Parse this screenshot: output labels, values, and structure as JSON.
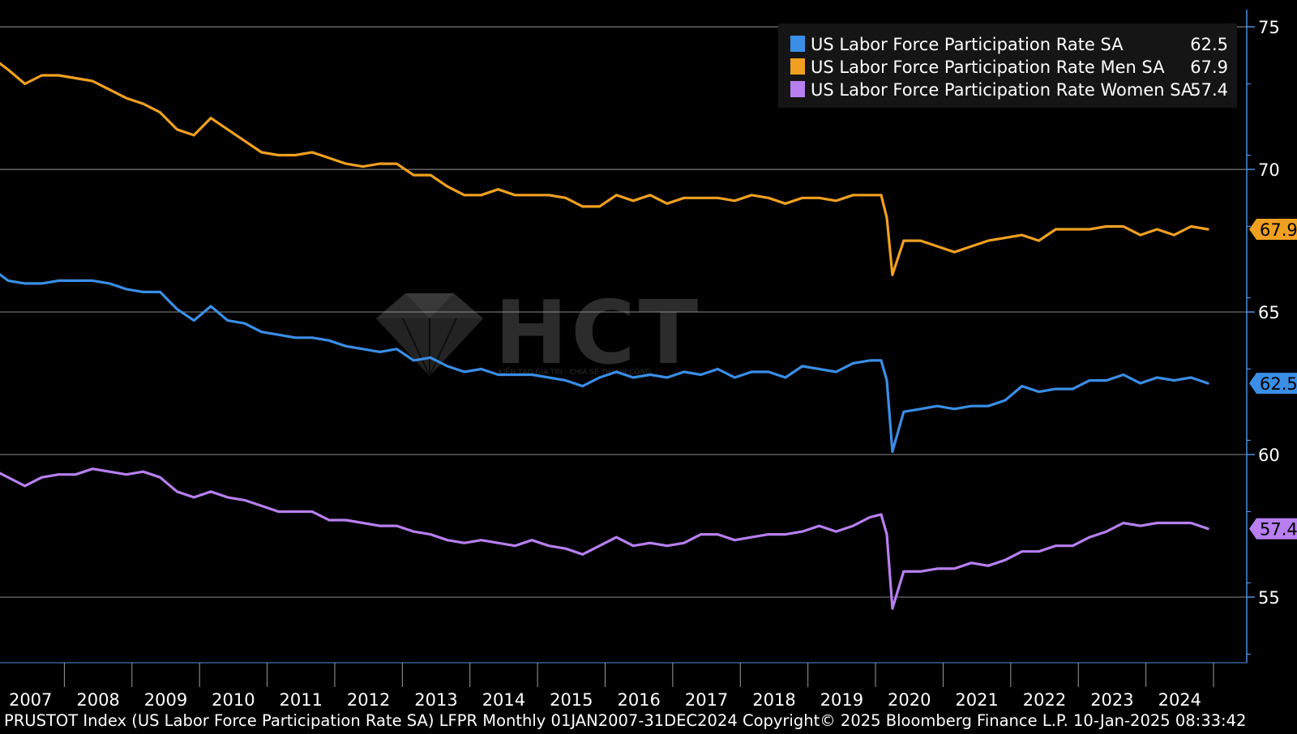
{
  "footer": {
    "caption": "PRUSTOT Index (US Labor Force Participation Rate SA) LFPR  Monthly 01JAN2007-31DEC2024 Copyright© 2025 Bloomberg Finance L.P. 10-Jan-2025 08:33:42"
  },
  "watermark": {
    "text": "HCT",
    "tagline": "KIẾN TẠO GIÁ TRỊ - CHIA SẺ THÀNH CÔNG"
  },
  "colors": {
    "background": "#000000",
    "grid": "#7a7a7a",
    "axis": "#4a90e2",
    "tick_text": "#ffffff",
    "legend_bg": "#151515"
  },
  "chart_data": {
    "type": "line",
    "title": "",
    "xlabel": "",
    "ylabel": "",
    "x_range": [
      "2007-01",
      "2024-12"
    ],
    "x_tick_labels": [
      "2007",
      "2008",
      "2009",
      "2010",
      "2011",
      "2012",
      "2013",
      "2014",
      "2015",
      "2016",
      "2017",
      "2018",
      "2019",
      "2020",
      "2021",
      "2022",
      "2023",
      "2024"
    ],
    "ylim": [
      52.7,
      75.6
    ],
    "y_ticks": [
      55,
      60,
      65,
      70,
      75
    ],
    "grid": true,
    "legend_position": "top-right",
    "y_axis_position": "right",
    "series": [
      {
        "name": "US Labor Force Participation Rate SA",
        "legend_value": "62.5",
        "last_label": "62.5",
        "color": "#3a8ee6",
        "points": [
          [
            "2007-01",
            66.4
          ],
          [
            "2007-03",
            66.1
          ],
          [
            "2007-06",
            66.0
          ],
          [
            "2007-09",
            66.0
          ],
          [
            "2007-12",
            66.1
          ],
          [
            "2008-03",
            66.1
          ],
          [
            "2008-06",
            66.1
          ],
          [
            "2008-09",
            66.0
          ],
          [
            "2008-12",
            65.8
          ],
          [
            "2009-03",
            65.7
          ],
          [
            "2009-06",
            65.7
          ],
          [
            "2009-09",
            65.1
          ],
          [
            "2009-12",
            64.7
          ],
          [
            "2010-03",
            65.2
          ],
          [
            "2010-06",
            64.7
          ],
          [
            "2010-09",
            64.6
          ],
          [
            "2010-12",
            64.3
          ],
          [
            "2011-03",
            64.2
          ],
          [
            "2011-06",
            64.1
          ],
          [
            "2011-09",
            64.1
          ],
          [
            "2011-12",
            64.0
          ],
          [
            "2012-03",
            63.8
          ],
          [
            "2012-06",
            63.7
          ],
          [
            "2012-09",
            63.6
          ],
          [
            "2012-12",
            63.7
          ],
          [
            "2013-03",
            63.3
          ],
          [
            "2013-06",
            63.4
          ],
          [
            "2013-09",
            63.1
          ],
          [
            "2013-12",
            62.9
          ],
          [
            "2014-03",
            63.0
          ],
          [
            "2014-06",
            62.8
          ],
          [
            "2014-09",
            62.8
          ],
          [
            "2014-12",
            62.8
          ],
          [
            "2015-03",
            62.7
          ],
          [
            "2015-06",
            62.6
          ],
          [
            "2015-09",
            62.4
          ],
          [
            "2015-12",
            62.7
          ],
          [
            "2016-03",
            62.9
          ],
          [
            "2016-06",
            62.7
          ],
          [
            "2016-09",
            62.8
          ],
          [
            "2016-12",
            62.7
          ],
          [
            "2017-03",
            62.9
          ],
          [
            "2017-06",
            62.8
          ],
          [
            "2017-09",
            63.0
          ],
          [
            "2017-12",
            62.7
          ],
          [
            "2018-03",
            62.9
          ],
          [
            "2018-06",
            62.9
          ],
          [
            "2018-09",
            62.7
          ],
          [
            "2018-12",
            63.1
          ],
          [
            "2019-03",
            63.0
          ],
          [
            "2019-06",
            62.9
          ],
          [
            "2019-09",
            63.2
          ],
          [
            "2019-12",
            63.3
          ],
          [
            "2020-02",
            63.3
          ],
          [
            "2020-03",
            62.6
          ],
          [
            "2020-04",
            60.1
          ],
          [
            "2020-06",
            61.5
          ],
          [
            "2020-09",
            61.6
          ],
          [
            "2020-12",
            61.7
          ],
          [
            "2021-03",
            61.6
          ],
          [
            "2021-06",
            61.7
          ],
          [
            "2021-09",
            61.7
          ],
          [
            "2021-12",
            61.9
          ],
          [
            "2022-03",
            62.4
          ],
          [
            "2022-06",
            62.2
          ],
          [
            "2022-09",
            62.3
          ],
          [
            "2022-12",
            62.3
          ],
          [
            "2023-03",
            62.6
          ],
          [
            "2023-06",
            62.6
          ],
          [
            "2023-09",
            62.8
          ],
          [
            "2023-12",
            62.5
          ],
          [
            "2024-03",
            62.7
          ],
          [
            "2024-06",
            62.6
          ],
          [
            "2024-09",
            62.7
          ],
          [
            "2024-12",
            62.5
          ]
        ]
      },
      {
        "name": "US Labor Force Participation Rate Men SA",
        "legend_value": "67.9",
        "last_label": "67.9",
        "color": "#f0a020",
        "points": [
          [
            "2007-01",
            73.8
          ],
          [
            "2007-03",
            73.5
          ],
          [
            "2007-06",
            73.0
          ],
          [
            "2007-09",
            73.3
          ],
          [
            "2007-12",
            73.3
          ],
          [
            "2008-03",
            73.2
          ],
          [
            "2008-06",
            73.1
          ],
          [
            "2008-09",
            72.8
          ],
          [
            "2008-12",
            72.5
          ],
          [
            "2009-03",
            72.3
          ],
          [
            "2009-06",
            72.0
          ],
          [
            "2009-09",
            71.4
          ],
          [
            "2009-12",
            71.2
          ],
          [
            "2010-03",
            71.8
          ],
          [
            "2010-06",
            71.4
          ],
          [
            "2010-09",
            71.0
          ],
          [
            "2010-12",
            70.6
          ],
          [
            "2011-03",
            70.5
          ],
          [
            "2011-06",
            70.5
          ],
          [
            "2011-09",
            70.6
          ],
          [
            "2011-12",
            70.4
          ],
          [
            "2012-03",
            70.2
          ],
          [
            "2012-06",
            70.1
          ],
          [
            "2012-09",
            70.2
          ],
          [
            "2012-12",
            70.2
          ],
          [
            "2013-03",
            69.8
          ],
          [
            "2013-06",
            69.8
          ],
          [
            "2013-09",
            69.4
          ],
          [
            "2013-12",
            69.1
          ],
          [
            "2014-03",
            69.1
          ],
          [
            "2014-06",
            69.3
          ],
          [
            "2014-09",
            69.1
          ],
          [
            "2014-12",
            69.1
          ],
          [
            "2015-03",
            69.1
          ],
          [
            "2015-06",
            69.0
          ],
          [
            "2015-09",
            68.7
          ],
          [
            "2015-12",
            68.7
          ],
          [
            "2016-03",
            69.1
          ],
          [
            "2016-06",
            68.9
          ],
          [
            "2016-09",
            69.1
          ],
          [
            "2016-12",
            68.8
          ],
          [
            "2017-03",
            69.0
          ],
          [
            "2017-06",
            69.0
          ],
          [
            "2017-09",
            69.0
          ],
          [
            "2017-12",
            68.9
          ],
          [
            "2018-03",
            69.1
          ],
          [
            "2018-06",
            69.0
          ],
          [
            "2018-09",
            68.8
          ],
          [
            "2018-12",
            69.0
          ],
          [
            "2019-03",
            69.0
          ],
          [
            "2019-06",
            68.9
          ],
          [
            "2019-09",
            69.1
          ],
          [
            "2019-12",
            69.1
          ],
          [
            "2020-02",
            69.1
          ],
          [
            "2020-03",
            68.3
          ],
          [
            "2020-04",
            66.3
          ],
          [
            "2020-06",
            67.5
          ],
          [
            "2020-09",
            67.5
          ],
          [
            "2020-12",
            67.3
          ],
          [
            "2021-03",
            67.1
          ],
          [
            "2021-06",
            67.3
          ],
          [
            "2021-09",
            67.5
          ],
          [
            "2021-12",
            67.6
          ],
          [
            "2022-03",
            67.7
          ],
          [
            "2022-06",
            67.5
          ],
          [
            "2022-09",
            67.9
          ],
          [
            "2022-12",
            67.9
          ],
          [
            "2023-03",
            67.9
          ],
          [
            "2023-06",
            68.0
          ],
          [
            "2023-09",
            68.0
          ],
          [
            "2023-12",
            67.7
          ],
          [
            "2024-03",
            67.9
          ],
          [
            "2024-06",
            67.7
          ],
          [
            "2024-09",
            68.0
          ],
          [
            "2024-12",
            67.9
          ]
        ]
      },
      {
        "name": "US Labor Force Participation Rate Women SA",
        "legend_value": "57.4",
        "last_label": "57.4",
        "color": "#b77ff0",
        "points": [
          [
            "2007-01",
            59.4
          ],
          [
            "2007-03",
            59.2
          ],
          [
            "2007-06",
            58.9
          ],
          [
            "2007-09",
            59.2
          ],
          [
            "2007-12",
            59.3
          ],
          [
            "2008-03",
            59.3
          ],
          [
            "2008-06",
            59.5
          ],
          [
            "2008-09",
            59.4
          ],
          [
            "2008-12",
            59.3
          ],
          [
            "2009-03",
            59.4
          ],
          [
            "2009-06",
            59.2
          ],
          [
            "2009-09",
            58.7
          ],
          [
            "2009-12",
            58.5
          ],
          [
            "2010-03",
            58.7
          ],
          [
            "2010-06",
            58.5
          ],
          [
            "2010-09",
            58.4
          ],
          [
            "2010-12",
            58.2
          ],
          [
            "2011-03",
            58.0
          ],
          [
            "2011-06",
            58.0
          ],
          [
            "2011-09",
            58.0
          ],
          [
            "2011-12",
            57.7
          ],
          [
            "2012-03",
            57.7
          ],
          [
            "2012-06",
            57.6
          ],
          [
            "2012-09",
            57.5
          ],
          [
            "2012-12",
            57.5
          ],
          [
            "2013-03",
            57.3
          ],
          [
            "2013-06",
            57.2
          ],
          [
            "2013-09",
            57.0
          ],
          [
            "2013-12",
            56.9
          ],
          [
            "2014-03",
            57.0
          ],
          [
            "2014-06",
            56.9
          ],
          [
            "2014-09",
            56.8
          ],
          [
            "2014-12",
            57.0
          ],
          [
            "2015-03",
            56.8
          ],
          [
            "2015-06",
            56.7
          ],
          [
            "2015-09",
            56.5
          ],
          [
            "2015-12",
            56.8
          ],
          [
            "2016-03",
            57.1
          ],
          [
            "2016-06",
            56.8
          ],
          [
            "2016-09",
            56.9
          ],
          [
            "2016-12",
            56.8
          ],
          [
            "2017-03",
            56.9
          ],
          [
            "2017-06",
            57.2
          ],
          [
            "2017-09",
            57.2
          ],
          [
            "2017-12",
            57.0
          ],
          [
            "2018-03",
            57.1
          ],
          [
            "2018-06",
            57.2
          ],
          [
            "2018-09",
            57.2
          ],
          [
            "2018-12",
            57.3
          ],
          [
            "2019-03",
            57.5
          ],
          [
            "2019-06",
            57.3
          ],
          [
            "2019-09",
            57.5
          ],
          [
            "2019-12",
            57.8
          ],
          [
            "2020-02",
            57.9
          ],
          [
            "2020-03",
            57.2
          ],
          [
            "2020-04",
            54.6
          ],
          [
            "2020-06",
            55.9
          ],
          [
            "2020-09",
            55.9
          ],
          [
            "2020-12",
            56.0
          ],
          [
            "2021-03",
            56.0
          ],
          [
            "2021-06",
            56.2
          ],
          [
            "2021-09",
            56.1
          ],
          [
            "2021-12",
            56.3
          ],
          [
            "2022-03",
            56.6
          ],
          [
            "2022-06",
            56.6
          ],
          [
            "2022-09",
            56.8
          ],
          [
            "2022-12",
            56.8
          ],
          [
            "2023-03",
            57.1
          ],
          [
            "2023-06",
            57.3
          ],
          [
            "2023-09",
            57.6
          ],
          [
            "2023-12",
            57.5
          ],
          [
            "2024-03",
            57.6
          ],
          [
            "2024-06",
            57.6
          ],
          [
            "2024-09",
            57.6
          ],
          [
            "2024-12",
            57.4
          ]
        ]
      }
    ]
  }
}
